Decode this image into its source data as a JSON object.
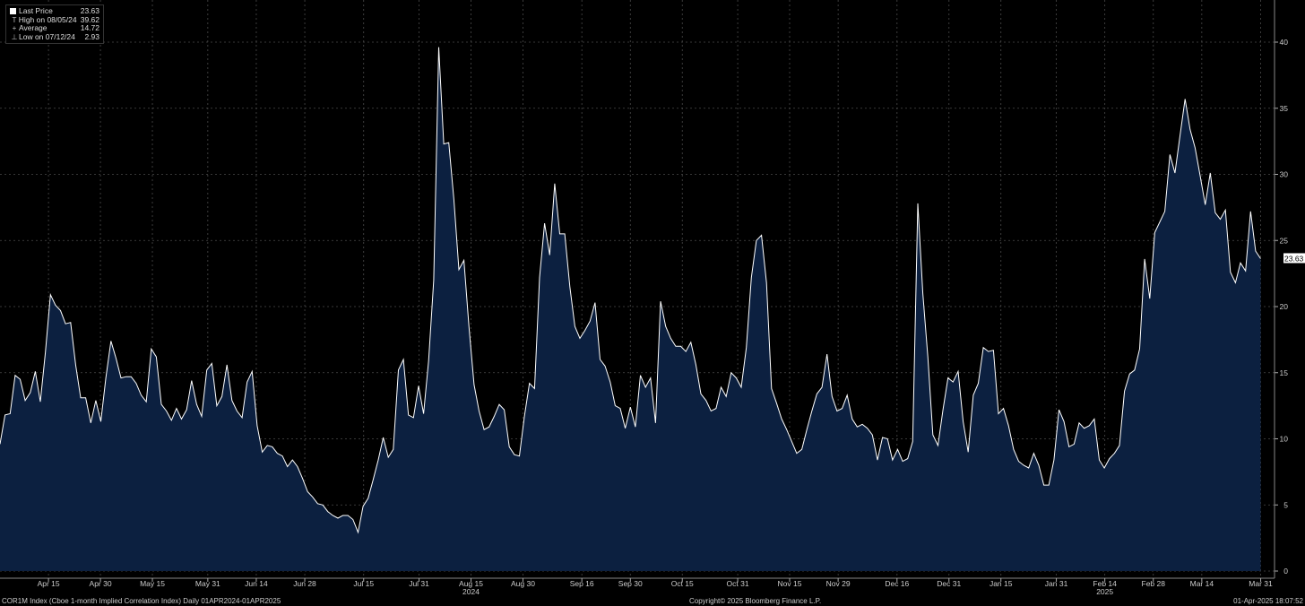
{
  "legend": {
    "items": [
      {
        "label": "Last Price",
        "value": "23.63",
        "mark": "■"
      },
      {
        "label": "High on 08/05/24",
        "value": "39.62",
        "mark": "T"
      },
      {
        "label": "Average",
        "value": "14.72",
        "mark": "+"
      },
      {
        "label": "Low on 07/12/24",
        "value": "2.93",
        "mark": "⊥"
      }
    ]
  },
  "last_value_tag": "23.63",
  "footer": {
    "left": "COR1M Index (Cboe 1-month Implied Correlation Index)  Daily 01APR2024-01APR2025",
    "center": "Copyright© 2025 Bloomberg Finance L.P.",
    "right": "01-Apr-2025 18:07:52"
  },
  "colors": {
    "line": "#ffffff",
    "fill": "#0c2040",
    "grid": "#555555",
    "background": "#000000"
  },
  "chart_data": {
    "type": "area",
    "title": "",
    "xlabel": "",
    "ylabel": "",
    "ylim": [
      0,
      41
    ],
    "y_ticks": [
      "0",
      "5",
      "10",
      "15",
      "20",
      "25",
      "30",
      "35",
      "40"
    ],
    "y_axis_position": "right",
    "grid": true,
    "x_ticks": [
      {
        "label": "Apr 15",
        "day": 14
      },
      {
        "label": "Apr 30",
        "day": 29
      },
      {
        "label": "May 15",
        "day": 44
      },
      {
        "label": "May 31",
        "day": 60
      },
      {
        "label": "Jun 14",
        "day": 74
      },
      {
        "label": "Jun 28",
        "day": 88
      },
      {
        "label": "Jul 15",
        "day": 105
      },
      {
        "label": "Jul 31",
        "day": 121
      },
      {
        "label": "Aug 15",
        "day": 136
      },
      {
        "label": "Aug 30",
        "day": 151
      },
      {
        "label": "Sep 16",
        "day": 168
      },
      {
        "label": "Sep 30",
        "day": 182
      },
      {
        "label": "Oct 15",
        "day": 197
      },
      {
        "label": "Oct 31",
        "day": 213
      },
      {
        "label": "Nov 15",
        "day": 228
      },
      {
        "label": "Nov 29",
        "day": 242
      },
      {
        "label": "Dec 16",
        "day": 259
      },
      {
        "label": "Dec 31",
        "day": 274
      },
      {
        "label": "Jan 15",
        "day": 289
      },
      {
        "label": "Jan 31",
        "day": 305
      },
      {
        "label": "Feb 14",
        "day": 319
      },
      {
        "label": "Feb 28",
        "day": 333
      },
      {
        "label": "Mar 14",
        "day": 347
      },
      {
        "label": "Mar 31",
        "day": 364
      }
    ],
    "year_labels": [
      {
        "label": "2024",
        "day": 136
      },
      {
        "label": "2025",
        "day": 319
      }
    ],
    "x_range_days": [
      0,
      368
    ],
    "series": [
      {
        "values": [
          [
            0,
            9.6
          ],
          [
            1,
            11.8
          ],
          [
            2,
            11.9
          ],
          [
            3,
            14.8
          ],
          [
            4,
            14.5
          ],
          [
            5,
            12.9
          ],
          [
            6,
            13.5
          ],
          [
            7,
            15.1
          ],
          [
            8,
            12.8
          ],
          [
            9,
            16.5
          ],
          [
            10,
            20.9
          ],
          [
            11,
            20.1
          ],
          [
            12,
            19.7
          ],
          [
            13,
            18.7
          ],
          [
            14,
            18.8
          ],
          [
            15,
            15.6
          ],
          [
            16,
            13.1
          ],
          [
            17,
            13.1
          ],
          [
            18,
            11.2
          ],
          [
            19,
            12.9
          ],
          [
            20,
            11.3
          ],
          [
            21,
            14.6
          ],
          [
            22,
            17.4
          ],
          [
            23,
            16.1
          ],
          [
            24,
            14.6
          ],
          [
            25,
            14.7
          ],
          [
            26,
            14.7
          ],
          [
            27,
            14.2
          ],
          [
            28,
            13.3
          ],
          [
            29,
            12.8
          ],
          [
            30,
            16.8
          ],
          [
            31,
            16.2
          ],
          [
            32,
            12.6
          ],
          [
            33,
            12.1
          ],
          [
            34,
            11.4
          ],
          [
            35,
            12.3
          ],
          [
            36,
            11.5
          ],
          [
            37,
            12.2
          ],
          [
            38,
            14.4
          ],
          [
            39,
            12.6
          ],
          [
            40,
            11.7
          ],
          [
            41,
            15.2
          ],
          [
            42,
            15.7
          ],
          [
            43,
            12.5
          ],
          [
            44,
            13.2
          ],
          [
            45,
            15.6
          ],
          [
            46,
            12.9
          ],
          [
            47,
            12.1
          ],
          [
            48,
            11.6
          ],
          [
            49,
            14.3
          ],
          [
            50,
            15.1
          ],
          [
            51,
            11.0
          ],
          [
            52,
            9.0
          ],
          [
            53,
            9.5
          ],
          [
            54,
            9.4
          ],
          [
            55,
            8.9
          ],
          [
            56,
            8.7
          ],
          [
            57,
            7.9
          ],
          [
            58,
            8.4
          ],
          [
            59,
            7.9
          ],
          [
            60,
            7.0
          ],
          [
            61,
            6.0
          ],
          [
            62,
            5.6
          ],
          [
            63,
            5.1
          ],
          [
            64,
            5.0
          ],
          [
            65,
            4.5
          ],
          [
            66,
            4.2
          ],
          [
            67,
            4.0
          ],
          [
            68,
            4.2
          ],
          [
            69,
            4.2
          ],
          [
            70,
            3.9
          ],
          [
            71,
            2.93
          ],
          [
            72,
            4.9
          ],
          [
            73,
            5.5
          ],
          [
            74,
            6.9
          ],
          [
            75,
            8.4
          ],
          [
            76,
            10.1
          ],
          [
            77,
            8.6
          ],
          [
            78,
            9.2
          ],
          [
            79,
            15.2
          ],
          [
            80,
            16.0
          ],
          [
            81,
            11.8
          ],
          [
            82,
            11.6
          ],
          [
            83,
            14.0
          ],
          [
            84,
            11.9
          ],
          [
            85,
            15.9
          ],
          [
            86,
            22.0
          ],
          [
            87,
            39.62
          ],
          [
            88,
            32.3
          ],
          [
            89,
            32.4
          ],
          [
            90,
            28.1
          ],
          [
            91,
            22.8
          ],
          [
            92,
            23.5
          ],
          [
            93,
            18.5
          ],
          [
            94,
            14.1
          ],
          [
            95,
            12.1
          ],
          [
            96,
            10.7
          ],
          [
            97,
            10.9
          ],
          [
            98,
            11.7
          ],
          [
            99,
            12.6
          ],
          [
            100,
            12.2
          ],
          [
            101,
            9.4
          ],
          [
            102,
            8.8
          ],
          [
            103,
            8.7
          ],
          [
            104,
            11.7
          ],
          [
            105,
            14.2
          ],
          [
            106,
            13.8
          ],
          [
            107,
            22.2
          ],
          [
            108,
            26.3
          ],
          [
            109,
            23.9
          ],
          [
            110,
            29.3
          ],
          [
            111,
            25.5
          ],
          [
            112,
            25.5
          ],
          [
            113,
            21.5
          ],
          [
            114,
            18.5
          ],
          [
            115,
            17.6
          ],
          [
            116,
            18.2
          ],
          [
            117,
            18.9
          ],
          [
            118,
            20.3
          ],
          [
            119,
            16.0
          ],
          [
            120,
            15.5
          ],
          [
            121,
            14.3
          ],
          [
            122,
            12.5
          ],
          [
            123,
            12.3
          ],
          [
            124,
            10.8
          ],
          [
            125,
            12.4
          ],
          [
            126,
            10.9
          ],
          [
            127,
            14.8
          ],
          [
            128,
            13.9
          ],
          [
            129,
            14.6
          ],
          [
            130,
            11.2
          ],
          [
            131,
            20.4
          ],
          [
            132,
            18.5
          ],
          [
            133,
            17.6
          ],
          [
            134,
            17.0
          ],
          [
            135,
            17.0
          ],
          [
            136,
            16.6
          ],
          [
            137,
            17.3
          ],
          [
            138,
            15.6
          ],
          [
            139,
            13.4
          ],
          [
            140,
            12.9
          ],
          [
            141,
            12.1
          ],
          [
            142,
            12.3
          ],
          [
            143,
            13.9
          ],
          [
            144,
            13.2
          ],
          [
            145,
            15.0
          ],
          [
            146,
            14.6
          ],
          [
            147,
            13.9
          ],
          [
            148,
            16.9
          ],
          [
            149,
            22.2
          ],
          [
            150,
            25.0
          ],
          [
            151,
            25.4
          ],
          [
            152,
            21.8
          ],
          [
            153,
            13.8
          ],
          [
            154,
            12.7
          ],
          [
            155,
            11.5
          ],
          [
            156,
            10.7
          ],
          [
            157,
            9.8
          ],
          [
            158,
            8.9
          ],
          [
            159,
            9.2
          ],
          [
            160,
            10.7
          ],
          [
            161,
            12.1
          ],
          [
            162,
            13.4
          ],
          [
            163,
            13.9
          ],
          [
            164,
            16.4
          ],
          [
            165,
            13.2
          ],
          [
            166,
            12.1
          ],
          [
            167,
            12.3
          ],
          [
            168,
            13.3
          ],
          [
            169,
            11.5
          ],
          [
            170,
            10.9
          ],
          [
            171,
            11.1
          ],
          [
            172,
            10.8
          ],
          [
            173,
            10.3
          ],
          [
            174,
            8.4
          ],
          [
            175,
            10.1
          ],
          [
            176,
            10.0
          ],
          [
            177,
            8.4
          ],
          [
            178,
            9.2
          ],
          [
            179,
            8.3
          ],
          [
            180,
            8.5
          ],
          [
            181,
            9.8
          ],
          [
            182,
            27.8
          ],
          [
            183,
            21.0
          ],
          [
            184,
            16.2
          ],
          [
            185,
            10.3
          ],
          [
            186,
            9.5
          ],
          [
            187,
            12.2
          ],
          [
            188,
            14.6
          ],
          [
            189,
            14.3
          ],
          [
            190,
            15.1
          ],
          [
            191,
            11.3
          ],
          [
            192,
            9.0
          ],
          [
            193,
            13.3
          ],
          [
            194,
            14.2
          ],
          [
            195,
            16.9
          ],
          [
            196,
            16.6
          ],
          [
            197,
            16.7
          ],
          [
            198,
            11.9
          ],
          [
            199,
            12.3
          ],
          [
            200,
            11.0
          ],
          [
            201,
            9.2
          ],
          [
            202,
            8.3
          ],
          [
            203,
            8.0
          ],
          [
            204,
            7.8
          ],
          [
            205,
            8.9
          ],
          [
            206,
            8.0
          ],
          [
            207,
            6.5
          ],
          [
            208,
            6.5
          ],
          [
            209,
            8.4
          ],
          [
            210,
            12.2
          ],
          [
            211,
            11.3
          ],
          [
            212,
            9.4
          ],
          [
            213,
            9.6
          ],
          [
            214,
            11.2
          ],
          [
            215,
            10.8
          ],
          [
            216,
            11.0
          ],
          [
            217,
            11.5
          ],
          [
            218,
            8.4
          ],
          [
            219,
            7.8
          ],
          [
            220,
            8.5
          ],
          [
            221,
            8.9
          ],
          [
            222,
            9.5
          ],
          [
            223,
            13.6
          ],
          [
            224,
            14.9
          ],
          [
            225,
            15.2
          ],
          [
            226,
            16.8
          ],
          [
            227,
            23.6
          ],
          [
            228,
            20.6
          ],
          [
            229,
            25.6
          ],
          [
            230,
            26.4
          ],
          [
            231,
            27.2
          ],
          [
            232,
            31.5
          ],
          [
            233,
            30.1
          ],
          [
            234,
            32.9
          ],
          [
            235,
            35.7
          ],
          [
            236,
            33.4
          ],
          [
            237,
            32.0
          ],
          [
            238,
            29.9
          ],
          [
            239,
            27.7
          ],
          [
            240,
            30.1
          ],
          [
            241,
            27.1
          ],
          [
            242,
            26.6
          ],
          [
            243,
            27.3
          ],
          [
            244,
            22.6
          ],
          [
            245,
            21.8
          ],
          [
            246,
            23.3
          ],
          [
            247,
            22.7
          ],
          [
            248,
            27.2
          ],
          [
            249,
            24.2
          ],
          [
            250,
            23.63
          ]
        ]
      }
    ]
  }
}
